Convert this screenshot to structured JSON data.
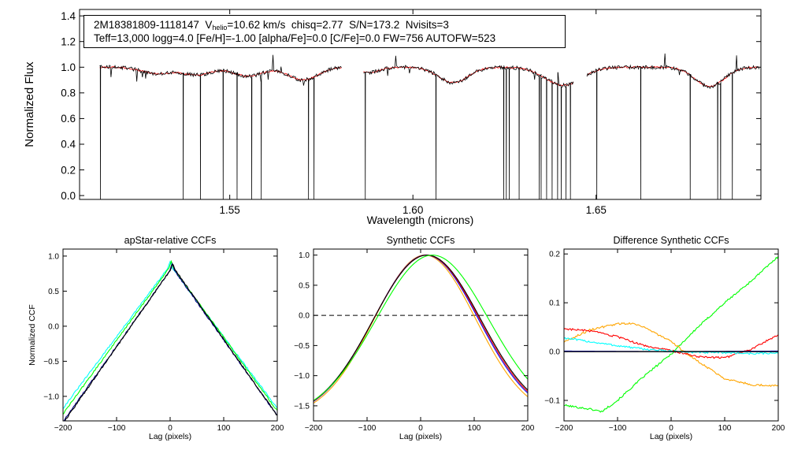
{
  "info": {
    "star_id": "2M18381809-1118147",
    "vhelio_prefix": "V",
    "vhelio_sub": "helio",
    "vhelio_value": "=10.62 km/s",
    "chisq": "chisq=2.77",
    "snr": "S/N=173.2",
    "nvisits": "Nvisits=3",
    "line2": "Teff=13,000 logg=4.0 [Fe/H]=-1.00 [alpha/Fe]=0.0 [C/Fe]=0.0 FW=756 AUTOFW=523"
  },
  "chart_data": [
    {
      "type": "line",
      "id": "spectrum",
      "title": "",
      "xlabel": "Wavelength (microns)",
      "ylabel": "Normalized Flux",
      "xlim": [
        1.509,
        1.695
      ],
      "ylim": [
        -0.03,
        1.45
      ],
      "xticks": [
        1.55,
        1.6,
        1.65
      ],
      "xtick_labels": [
        "1.55",
        "1.60",
        "1.65"
      ],
      "yticks": [
        0.0,
        0.2,
        0.4,
        0.6,
        0.8,
        1.0,
        1.2,
        1.4
      ],
      "ytick_labels": [
        "0.0",
        "0.2",
        "0.4",
        "0.6",
        "0.8",
        "1.0",
        "1.2",
        "1.4"
      ],
      "chips": [
        [
          1.5145,
          1.5805
        ],
        [
          1.5865,
          1.6438
        ],
        [
          1.6475,
          1.6945
        ]
      ],
      "dips": [
        {
          "center": 1.53,
          "depth": 0.05,
          "width": 0.004
        },
        {
          "center": 1.541,
          "depth": 0.06,
          "width": 0.004
        },
        {
          "center": 1.555,
          "depth": 0.07,
          "width": 0.004
        },
        {
          "center": 1.57,
          "depth": 0.1,
          "width": 0.004
        },
        {
          "center": 1.588,
          "depth": 0.04,
          "width": 0.003
        },
        {
          "center": 1.611,
          "depth": 0.12,
          "width": 0.004
        },
        {
          "center": 1.641,
          "depth": 0.14,
          "width": 0.005
        },
        {
          "center": 1.681,
          "depth": 0.15,
          "width": 0.004
        }
      ],
      "bad_pixels": [
        1.5147,
        1.5373,
        1.542,
        1.5482,
        1.552,
        1.556,
        1.5586,
        1.5715,
        1.573,
        1.587,
        1.6063,
        1.6248,
        1.6255,
        1.6263,
        1.629,
        1.6345,
        1.635,
        1.6365,
        1.638,
        1.6395,
        1.6405,
        1.6418,
        1.643,
        1.6502,
        1.6622,
        1.6757,
        1.6832,
        1.684,
        1.6872
      ],
      "series": [
        {
          "name": "observed",
          "color": "#000000"
        },
        {
          "name": "model",
          "color": "#ff0000"
        }
      ]
    },
    {
      "type": "line",
      "id": "apstar-ccf",
      "title": "apStar-relative CCFs",
      "xlabel": "Lag (pixels)",
      "ylabel": "Normalized CCF",
      "xlim": [
        -200,
        200
      ],
      "ylim": [
        -1.35,
        1.1
      ],
      "xticks": [
        -200,
        -100,
        0,
        100,
        200
      ],
      "xtick_labels": [
        "−200",
        "−100",
        "0",
        "100",
        "200"
      ],
      "yticks": [
        -1.0,
        -0.5,
        0.0,
        0.5,
        1.0
      ],
      "ytick_labels": [
        "−1.0",
        "−0.5",
        "0.0",
        "0.5",
        "1.0"
      ],
      "series": [
        {
          "name": "visit-1",
          "color": "#00ffff",
          "peak": 0.87,
          "slope": 0.0102,
          "shift": 0
        },
        {
          "name": "visit-2",
          "color": "#00ff00",
          "peak": 0.87,
          "slope": 0.0105,
          "shift": 2
        },
        {
          "name": "visit-3",
          "color": "#000080",
          "peak": 0.84,
          "slope": 0.0108,
          "shift": 4
        },
        {
          "name": "combined",
          "color": "#000000",
          "peak": 0.85,
          "slope": 0.0109,
          "shift": 5
        }
      ]
    },
    {
      "type": "line",
      "id": "synthetic-ccf",
      "title": "Synthetic CCFs",
      "xlabel": "Lag (pixels)",
      "ylabel": "",
      "xlim": [
        -200,
        200
      ],
      "ylim": [
        -1.75,
        1.1
      ],
      "xticks": [
        -200,
        -100,
        0,
        100,
        200
      ],
      "xtick_labels": [
        "−200",
        "−100",
        "0",
        "100",
        "200"
      ],
      "yticks": [
        -1.5,
        -1.0,
        -0.5,
        0.0,
        0.5,
        1.0
      ],
      "ytick_labels": [
        "−1.5",
        "−1.0",
        "−0.5",
        "0.0",
        "0.5",
        "1.0"
      ],
      "zero_line": true,
      "series": [
        {
          "name": "orange",
          "color": "#ffa500",
          "sigma": 95,
          "shift": 8
        },
        {
          "name": "blue",
          "color": "#0000ff",
          "sigma": 98,
          "shift": 10
        },
        {
          "name": "red",
          "color": "#ff0000",
          "sigma": 99,
          "shift": 11
        },
        {
          "name": "black",
          "color": "#000000",
          "sigma": 100,
          "shift": 12
        },
        {
          "name": "green",
          "color": "#00ff00",
          "sigma": 105,
          "shift": 22
        }
      ]
    },
    {
      "type": "line",
      "id": "difference-ccf",
      "title": "Difference Synthetic CCFs",
      "xlabel": "Lag (pixels)",
      "ylabel": "",
      "xlim": [
        -200,
        200
      ],
      "ylim": [
        -0.142,
        0.21
      ],
      "xticks": [
        -200,
        -100,
        0,
        100,
        200
      ],
      "xtick_labels": [
        "−200",
        "−100",
        "0",
        "100",
        "200"
      ],
      "yticks": [
        -0.1,
        0.0,
        0.1,
        0.2
      ],
      "ytick_labels": [
        "−0.1",
        "0.0",
        "0.1",
        "0.2"
      ],
      "series": [
        {
          "name": "green",
          "color": "#00ff00",
          "points": [
            [
              -200,
              -0.11
            ],
            [
              -150,
              -0.118
            ],
            [
              -130,
              -0.123
            ],
            [
              -100,
              -0.1
            ],
            [
              -50,
              -0.05
            ],
            [
              0,
              -0.005
            ],
            [
              50,
              0.05
            ],
            [
              100,
              0.1
            ],
            [
              150,
              0.145
            ],
            [
              200,
              0.195
            ]
          ]
        },
        {
          "name": "orange",
          "color": "#ffa500",
          "points": [
            [
              -200,
              0.02
            ],
            [
              -150,
              0.045
            ],
            [
              -100,
              0.057
            ],
            [
              -70,
              0.058
            ],
            [
              -50,
              0.05
            ],
            [
              0,
              0.02
            ],
            [
              50,
              -0.02
            ],
            [
              100,
              -0.055
            ],
            [
              150,
              -0.068
            ],
            [
              200,
              -0.07
            ]
          ]
        },
        {
          "name": "red",
          "color": "#ff0000",
          "points": [
            [
              -200,
              0.047
            ],
            [
              -150,
              0.042
            ],
            [
              -100,
              0.03
            ],
            [
              -50,
              0.012
            ],
            [
              0,
              0.002
            ],
            [
              50,
              -0.01
            ],
            [
              100,
              -0.013
            ],
            [
              150,
              0.005
            ],
            [
              200,
              0.035
            ]
          ]
        },
        {
          "name": "cyan",
          "color": "#00ffff",
          "points": [
            [
              -200,
              0.028
            ],
            [
              -150,
              0.02
            ],
            [
              -100,
              0.012
            ],
            [
              -50,
              0.005
            ],
            [
              0,
              0.001
            ],
            [
              50,
              -0.002
            ],
            [
              100,
              -0.002
            ],
            [
              150,
              -0.004
            ],
            [
              200,
              -0.003
            ]
          ]
        },
        {
          "name": "blue",
          "color": "#0000ff",
          "points": [
            [
              -200,
              0.001
            ],
            [
              0,
              0.0
            ],
            [
              200,
              0.001
            ]
          ]
        },
        {
          "name": "black",
          "color": "#000000",
          "points": [
            [
              -200,
              0.0
            ],
            [
              200,
              0.0
            ]
          ]
        }
      ]
    }
  ]
}
